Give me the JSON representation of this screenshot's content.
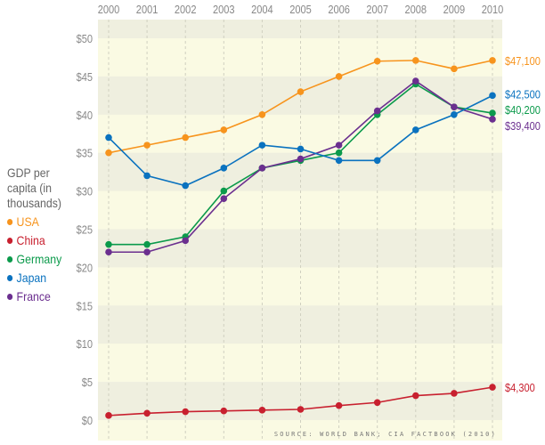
{
  "chart_data": {
    "type": "line",
    "title": "",
    "ylabel": "GDP per capita (in thousands)",
    "xlabel": "",
    "x": [
      2000,
      2001,
      2002,
      2003,
      2004,
      2005,
      2006,
      2007,
      2008,
      2009,
      2010
    ],
    "x_tick_labels": [
      "2000",
      "2001",
      "2002",
      "2003",
      "2004",
      "2005",
      "2006",
      "2007",
      "2008",
      "2009",
      "2010"
    ],
    "y_tick_labels": [
      "$0",
      "$5",
      "$10",
      "$15",
      "$20",
      "$25",
      "$30",
      "$35",
      "$40",
      "$45",
      "$50"
    ],
    "y_ticks": [
      0,
      5,
      10,
      15,
      20,
      25,
      30,
      35,
      40,
      45,
      50
    ],
    "ylim": [
      -2.7,
      52.5
    ],
    "grid": "vertical dashed lines; alternating horizontal bands",
    "legend_placement": "left",
    "series": [
      {
        "name": "USA",
        "color": "#f7941d",
        "values": [
          35,
          36,
          37,
          38,
          40,
          43,
          45,
          47,
          47.1,
          46,
          47.1
        ],
        "end_label": "$47,100"
      },
      {
        "name": "China",
        "color": "#c8202f",
        "values": [
          0.6,
          0.9,
          1.1,
          1.2,
          1.3,
          1.4,
          1.9,
          2.3,
          3.2,
          3.5,
          4.3
        ],
        "end_label": "$4,300"
      },
      {
        "name": "Germany",
        "color": "#0b9a4b",
        "values": [
          23,
          23,
          24,
          30,
          33,
          34,
          35,
          40,
          44,
          41,
          40.2
        ],
        "end_label": "$40,200"
      },
      {
        "name": "Japan",
        "color": "#0a72bf",
        "values": [
          37,
          32,
          30.7,
          33,
          36,
          35.5,
          34,
          34,
          38,
          40,
          42.5
        ],
        "end_label": "$42,500"
      },
      {
        "name": "France",
        "color": "#6b2f8f",
        "values": [
          22,
          22,
          23.5,
          29,
          33,
          34.2,
          36,
          40.5,
          44.4,
          41,
          39.4
        ],
        "end_label": "$39,400"
      }
    ],
    "source": "SOURCE: WORLD BANK; CIA FACTBOOK (2010)"
  },
  "colors": {
    "band_light": "#fafae3",
    "band_dark": "#efefdf",
    "axis_text": "#888888"
  }
}
